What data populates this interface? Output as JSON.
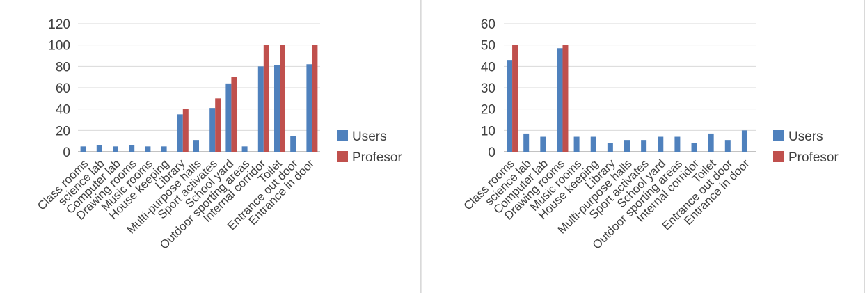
{
  "chart_data": [
    {
      "type": "bar",
      "title": "",
      "xlabel": "",
      "ylabel": "",
      "ylim": [
        0,
        120
      ],
      "yticks": [
        0,
        20,
        40,
        60,
        80,
        100,
        120
      ],
      "grid": true,
      "legend_position": "right",
      "categories": [
        "Class rooms",
        "science lab",
        "Computer lab",
        "Drawing rooms",
        "Music rooms",
        "House keeping",
        "Library",
        "Multi-purpose halls",
        "Sport activates",
        "School yard",
        "Outdoor sporting areas",
        "Internal corridor",
        "Toilet",
        "Entrance out door",
        "Entrance in door"
      ],
      "series": [
        {
          "name": "Users",
          "color": "#4f81bd",
          "values": [
            5,
            6.5,
            5,
            6.5,
            5,
            5,
            35,
            11,
            41,
            64,
            5,
            80,
            81,
            15,
            82
          ]
        },
        {
          "name": "Profesor",
          "color": "#c0504d",
          "values": [
            0,
            0,
            0,
            0,
            0,
            0,
            40,
            0,
            50,
            70,
            0,
            100,
            100,
            0,
            100
          ]
        }
      ]
    },
    {
      "type": "bar",
      "title": "",
      "xlabel": "",
      "ylabel": "",
      "ylim": [
        0,
        60
      ],
      "yticks": [
        0,
        10,
        20,
        30,
        40,
        50,
        60
      ],
      "grid": true,
      "legend_position": "right",
      "categories": [
        "Class rooms",
        "science lab",
        "Computer lab",
        "Drawing rooms",
        "Music rooms",
        "House keeping",
        "Library",
        "Multi-purpose halls",
        "Sport activates",
        "School yard",
        "Outdoor sporting areas",
        "Internal corridor",
        "Toilet",
        "Entrance out door",
        "Entrance in door"
      ],
      "series": [
        {
          "name": "Users",
          "color": "#4f81bd",
          "values": [
            43,
            8.5,
            7,
            48.5,
            7,
            7,
            4,
            5.5,
            5.5,
            7,
            7,
            4,
            8.5,
            5.5,
            10
          ]
        },
        {
          "name": "Profesor",
          "color": "#c0504d",
          "values": [
            50,
            0,
            0,
            50,
            0,
            0,
            0,
            0,
            0,
            0,
            0,
            0,
            0,
            0,
            0
          ]
        }
      ]
    }
  ]
}
